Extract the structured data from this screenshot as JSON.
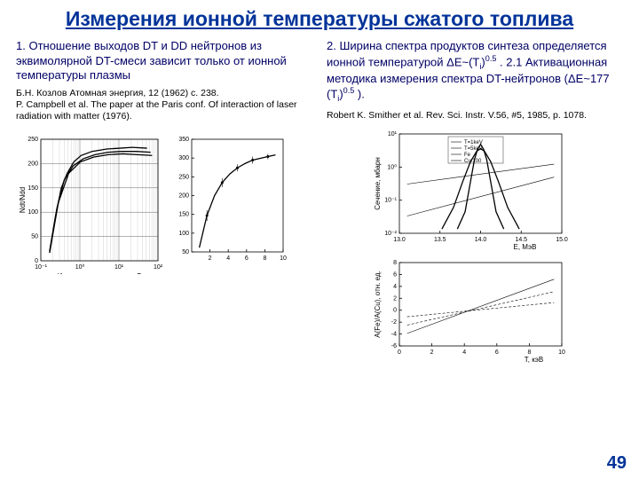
{
  "title": "Измерения ионной температуры сжатого топлива",
  "pagenum": "49",
  "left": {
    "subtitle": "1. Отношение выходов DT и DD нейтронов из эквимолярной DT-смеси зависит только от ионной температуры плазмы",
    "ref1": "Б.Н. Козлов Атомная энергия, 12 (1962) с. 238.",
    "ref2": "P. Campbell et al. The paper at the Paris conf. Of interaction of laser radiation with matter (1976).",
    "chart1": {
      "ylabel": "Ndt/Ndd",
      "xlabel": "Ионная температура, кэВ",
      "xticks": [
        "10⁻¹",
        "10⁰",
        "10¹",
        "10²"
      ],
      "yvals": [
        0,
        50,
        100,
        150,
        200,
        250
      ],
      "curves": [
        [
          [
            12,
            138
          ],
          [
            20,
            95
          ],
          [
            28,
            60
          ],
          [
            36,
            42
          ],
          [
            45,
            28
          ],
          [
            55,
            20
          ],
          [
            70,
            15
          ],
          [
            90,
            12
          ],
          [
            108,
            11
          ],
          [
            125,
            10
          ],
          [
            145,
            11
          ]
        ],
        [
          [
            12,
            140
          ],
          [
            22,
            85
          ],
          [
            32,
            50
          ],
          [
            44,
            33
          ],
          [
            58,
            24
          ],
          [
            74,
            19
          ],
          [
            92,
            16
          ],
          [
            110,
            15
          ],
          [
            130,
            15
          ],
          [
            150,
            16
          ]
        ],
        [
          [
            12,
            140
          ],
          [
            24,
            78
          ],
          [
            38,
            42
          ],
          [
            54,
            28
          ],
          [
            72,
            22
          ],
          [
            92,
            19
          ],
          [
            112,
            18
          ],
          [
            132,
            19
          ],
          [
            152,
            20
          ]
        ]
      ]
    },
    "chart2": {
      "xticks": [
        2,
        4,
        6,
        8,
        10
      ],
      "yvals": [
        50,
        100,
        150,
        200,
        250,
        300,
        350
      ],
      "curve": [
        [
          10,
          125
        ],
        [
          20,
          88
        ],
        [
          30,
          65
        ],
        [
          40,
          50
        ],
        [
          50,
          40
        ],
        [
          60,
          33
        ],
        [
          70,
          28
        ],
        [
          80,
          24
        ],
        [
          90,
          22
        ],
        [
          100,
          20
        ],
        [
          110,
          18
        ]
      ],
      "errorbars": [
        [
          20,
          88,
          6
        ],
        [
          40,
          50,
          5
        ],
        [
          60,
          33,
          4
        ],
        [
          80,
          24,
          4
        ],
        [
          100,
          20,
          3
        ]
      ]
    }
  },
  "right": {
    "subtitle_part1": "2. Ширина спектра продуктов синтеза определяется ионной температурой ΔE~(T",
    "subtitle_sub1": "i",
    "subtitle_part2": ")",
    "subtitle_sup1": "0.5",
    "subtitle_part3": " . 2.1 Активационная методика измерения спектра DT-нейтронов (ΔE~177 (T",
    "subtitle_sub2": "i",
    "subtitle_part4": ")",
    "subtitle_sup2": "0.5",
    "subtitle_part5": " ).",
    "ref": "Robert K. Smither et al. Rev. Sci. Instr. V.56, #5, 1985, p. 1078.",
    "top_chart": {
      "ylabel": "Сечение, мбарн",
      "xlabel": "E, МэВ",
      "xticks": [
        "13.0",
        "13.5",
        "14.0",
        "14.5",
        "15.0"
      ],
      "yticks": [
        "10⁻²",
        "10⁻¹",
        "10⁰",
        "10¹"
      ],
      "legend": [
        "T=1keV",
        "T=5keV",
        "Fe",
        "Cu/100"
      ],
      "lines": [
        [
          [
            10,
            58
          ],
          [
            200,
            35
          ]
        ],
        [
          [
            10,
            95
          ],
          [
            200,
            50
          ]
        ]
      ],
      "peaks": [
        [
          [
            75,
            110
          ],
          [
            85,
            90
          ],
          [
            92,
            55
          ],
          [
            97,
            30
          ],
          [
            101,
            18
          ],
          [
            105,
            12
          ],
          [
            109,
            18
          ],
          [
            113,
            30
          ],
          [
            118,
            55
          ],
          [
            125,
            90
          ],
          [
            135,
            110
          ]
        ],
        [
          [
            55,
            110
          ],
          [
            70,
            85
          ],
          [
            82,
            55
          ],
          [
            92,
            32
          ],
          [
            100,
            20
          ],
          [
            105,
            17
          ],
          [
            110,
            20
          ],
          [
            118,
            32
          ],
          [
            128,
            55
          ],
          [
            140,
            85
          ],
          [
            155,
            110
          ]
        ]
      ]
    },
    "bottom_chart": {
      "ylabel": "A(Fe)/A(Cu), отн. ед.",
      "xlabel": "T, кэВ",
      "xticks": [
        0,
        2,
        4,
        6,
        8,
        10
      ],
      "yticks": [
        -6,
        -4,
        -2,
        0,
        2,
        4,
        6,
        8
      ],
      "curves": [
        [
          [
            10,
            85
          ],
          [
            200,
            20
          ]
        ],
        [
          [
            10,
            75
          ],
          [
            200,
            35
          ]
        ],
        [
          [
            10,
            65
          ],
          [
            200,
            48
          ]
        ]
      ]
    }
  }
}
